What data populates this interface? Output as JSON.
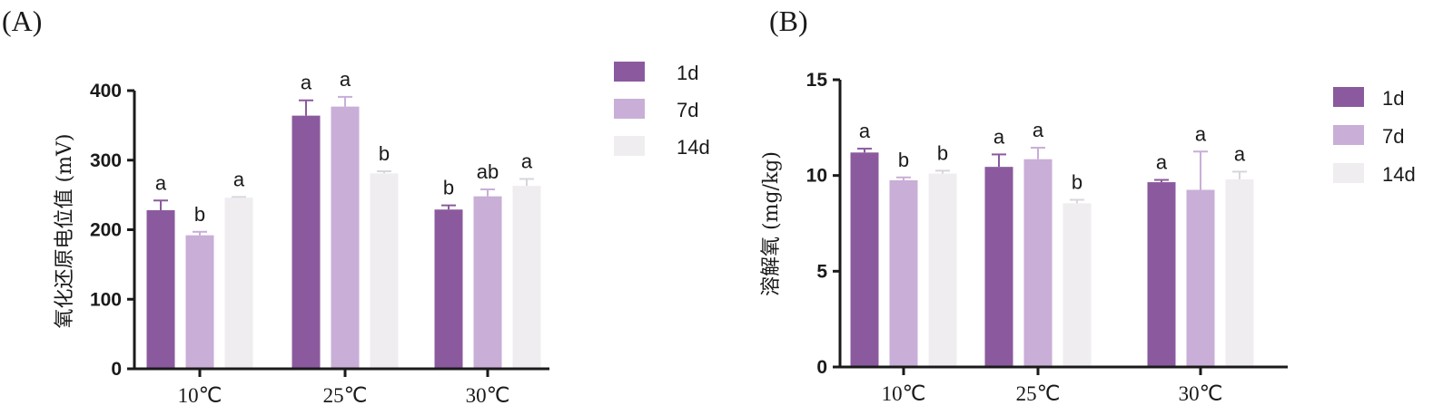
{
  "chart_data": [
    {
      "type": "bar",
      "panel_label": "(A)",
      "ylabel": "氧化还原电位值 (mV)",
      "ylim": [
        0,
        400
      ],
      "yticks": [
        0,
        100,
        200,
        300,
        400
      ],
      "categories": [
        "10℃",
        "25℃",
        "30℃"
      ],
      "legend_position": "top-right",
      "series": [
        {
          "name": "1d",
          "color": "#8b5a9e",
          "values": [
            228,
            364,
            229
          ],
          "errors": [
            14,
            22,
            6
          ],
          "letters": [
            "a",
            "a",
            "b"
          ]
        },
        {
          "name": "7d",
          "color": "#c9aed7",
          "values": [
            192,
            377,
            248
          ],
          "errors": [
            5,
            14,
            10
          ],
          "letters": [
            "b",
            "a",
            "ab"
          ]
        },
        {
          "name": "14d",
          "color": "#efedf0",
          "values": [
            246,
            281,
            263
          ],
          "errors": [
            1,
            3,
            10
          ],
          "letters": [
            "a",
            "b",
            "a"
          ]
        }
      ]
    },
    {
      "type": "bar",
      "panel_label": "(B)",
      "ylabel": "溶解氧 (mg/kg)",
      "ylim": [
        0,
        15
      ],
      "yticks": [
        0,
        5,
        10,
        15
      ],
      "categories": [
        "10℃",
        "25℃",
        "30℃"
      ],
      "legend_position": "top-right",
      "series": [
        {
          "name": "1d",
          "color": "#8b5a9e",
          "values": [
            11.2,
            10.45,
            9.65
          ],
          "errors": [
            0.2,
            0.65,
            0.12
          ],
          "letters": [
            "a",
            "a",
            "a"
          ]
        },
        {
          "name": "7d",
          "color": "#c9aed7",
          "values": [
            9.75,
            10.85,
            9.25
          ],
          "errors": [
            0.15,
            0.6,
            2.0
          ],
          "letters": [
            "b",
            "a",
            "a"
          ]
        },
        {
          "name": "14d",
          "color": "#efedf0",
          "values": [
            10.1,
            8.55,
            9.8
          ],
          "errors": [
            0.15,
            0.18,
            0.4
          ],
          "letters": [
            "b",
            "b",
            "a"
          ]
        }
      ]
    }
  ]
}
